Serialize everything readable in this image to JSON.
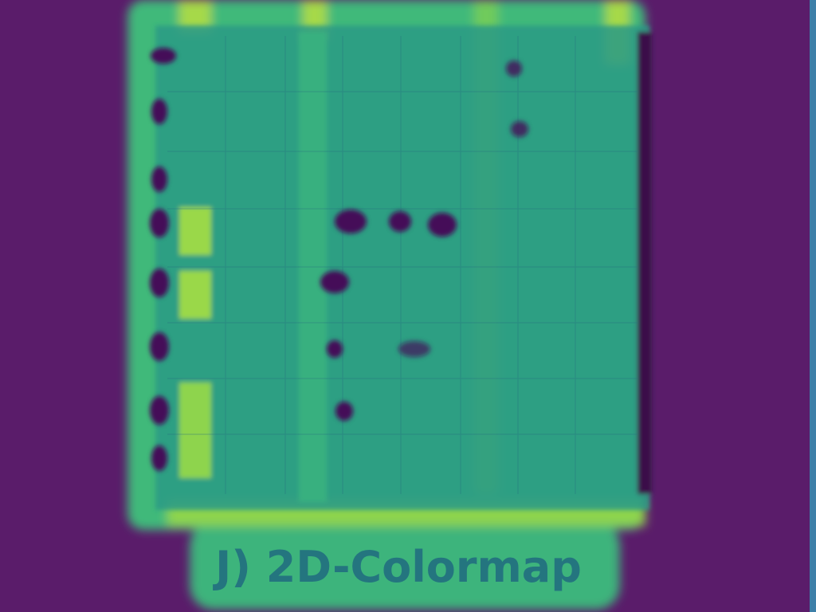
{
  "caption": "J) 2D-Colormap"
}
